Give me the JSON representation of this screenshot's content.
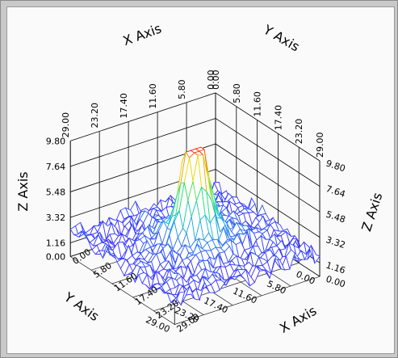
{
  "chart_data": {
    "type": "surface-3d",
    "title": "",
    "xlabel": "X Axis",
    "ylabel": "Y Axis",
    "zlabel": "Z Axis",
    "x_ticks": [
      "0.00",
      "5.80",
      "11.60",
      "17.40",
      "23.20",
      "29.00"
    ],
    "y_ticks": [
      "0.00",
      "5.80",
      "11.60",
      "17.40",
      "23.20",
      "29.00"
    ],
    "z_ticks": [
      "0.00",
      "1.16",
      "3.32",
      "5.48",
      "7.64",
      "9.80"
    ],
    "xlim": [
      0,
      29
    ],
    "ylim": [
      0,
      29
    ],
    "zlim": [
      0,
      9.8
    ],
    "grid": true,
    "colormap": [
      "#7a1fd6",
      "#3a3aff",
      "#22b3e6",
      "#22e07a",
      "#f0e000",
      "#ff2a1a"
    ],
    "surface": {
      "description_values": "peak near center",
      "peak": {
        "x": 14.5,
        "y": 14.5,
        "z": 9.8
      },
      "background_level": 1.0
    }
  }
}
